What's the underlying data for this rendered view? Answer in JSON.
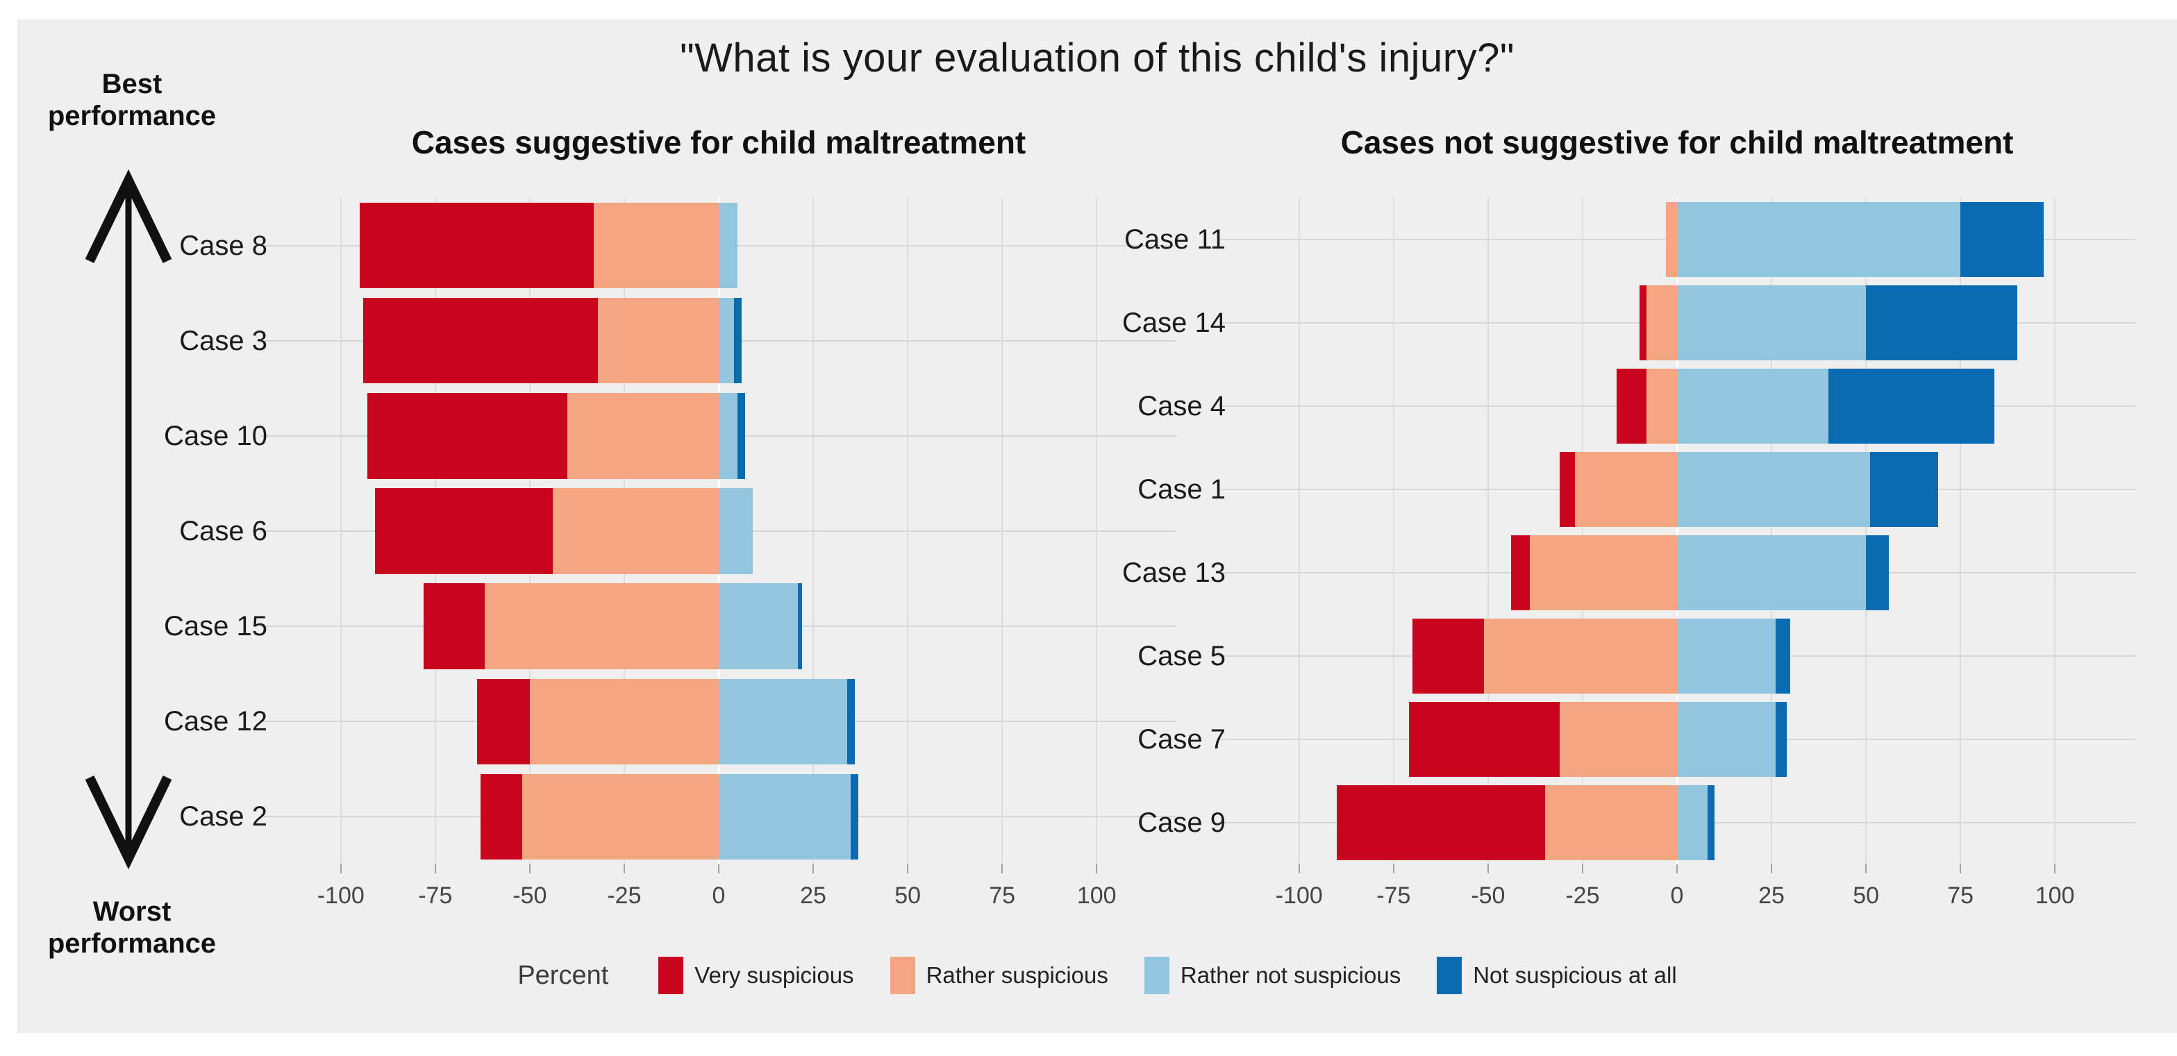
{
  "title": "\"What is your evaluation of this child's injury?\"",
  "annotations": {
    "best_label": "Best performance",
    "worst_label": "Worst performance"
  },
  "legend": {
    "axis_label": "Percent",
    "items": [
      {
        "label": "Very suspicious",
        "color": "#C8041E"
      },
      {
        "label": "Rather suspicious",
        "color": "#F4A582"
      },
      {
        "label": "Rather not suspicious",
        "color": "#92C5DE"
      },
      {
        "label": "Not suspicious at all",
        "color": "#0B6BB1"
      }
    ]
  },
  "colors": {
    "background": "#EFEFEF",
    "gridline": "#DCDCDC",
    "zero_line": "#FFFFFF",
    "row_line": "#D6D6D6"
  },
  "chart_data": [
    {
      "type": "bar",
      "id": "suggestive",
      "orientation": "horizontal",
      "diverging": true,
      "title": "Cases suggestive for child maltreatment",
      "xlabel": "Percent",
      "xlim": [
        -113,
        113
      ],
      "xticks": [
        -100,
        -75,
        -50,
        -25,
        0,
        25,
        50,
        75,
        100
      ],
      "categories": [
        "Case 8",
        "Case 3",
        "Case 10",
        "Case 6",
        "Case 15",
        "Case 12",
        "Case 2"
      ],
      "series": [
        {
          "name": "Very suspicious",
          "values": [
            62,
            62,
            53,
            47,
            16,
            14,
            11
          ]
        },
        {
          "name": "Rather suspicious",
          "values": [
            33,
            32,
            40,
            44,
            62,
            50,
            52
          ]
        },
        {
          "name": "Rather not suspicious",
          "values": [
            5,
            4,
            5,
            9,
            21,
            34,
            35
          ]
        },
        {
          "name": "Not suspicious at all",
          "values": [
            0,
            2,
            2,
            0,
            1,
            2,
            2
          ]
        }
      ]
    },
    {
      "type": "bar",
      "id": "not-suggestive",
      "orientation": "horizontal",
      "diverging": true,
      "title": "Cases not suggestive for child maltreatment",
      "xlabel": "Percent",
      "xlim": [
        -113,
        113
      ],
      "xticks": [
        -100,
        -75,
        -50,
        -25,
        0,
        25,
        50,
        75,
        100
      ],
      "categories": [
        "Case 11",
        "Case 14",
        "Case 4",
        "Case 1",
        "Case 13",
        "Case 5",
        "Case 7",
        "Case 9"
      ],
      "series": [
        {
          "name": "Very suspicious",
          "values": [
            0,
            2,
            8,
            4,
            5,
            19,
            40,
            55
          ]
        },
        {
          "name": "Rather suspicious",
          "values": [
            3,
            8,
            8,
            27,
            39,
            51,
            31,
            35
          ]
        },
        {
          "name": "Rather not suspicious",
          "values": [
            75,
            50,
            40,
            51,
            50,
            26,
            26,
            8
          ]
        },
        {
          "name": "Not suspicious at all",
          "values": [
            22,
            40,
            44,
            18,
            6,
            4,
            3,
            2
          ]
        }
      ]
    }
  ]
}
